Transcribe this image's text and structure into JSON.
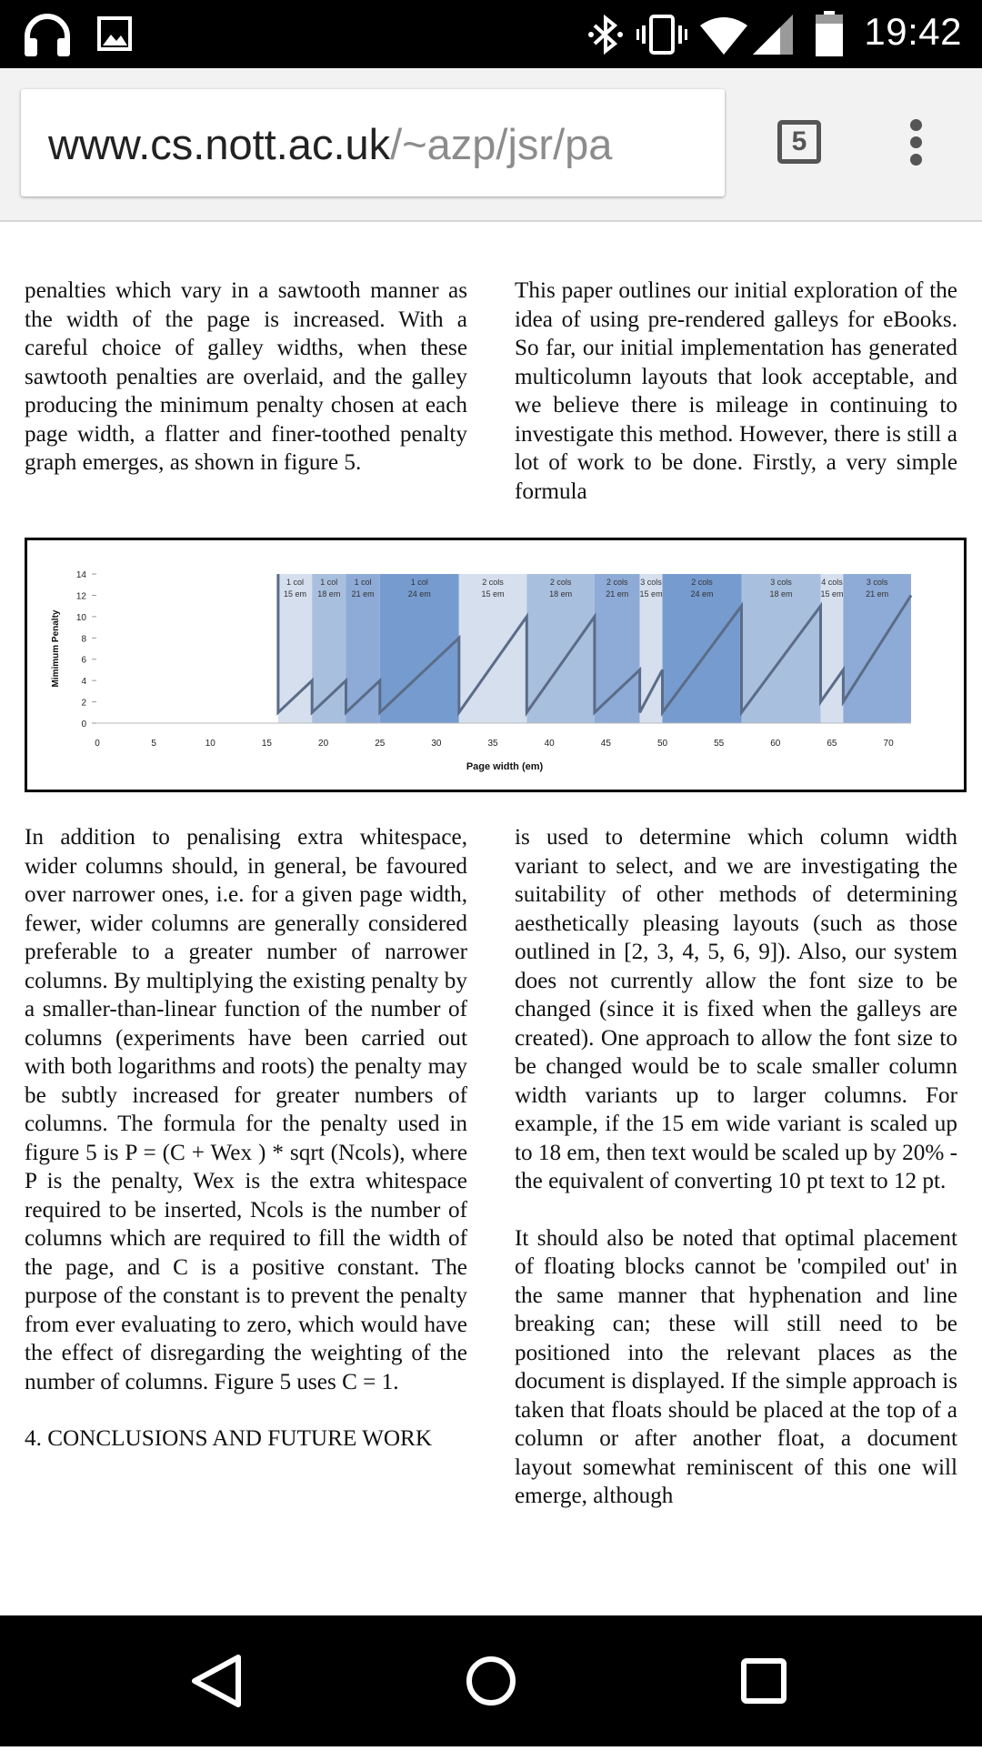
{
  "status_bar": {
    "time": "19:42",
    "left_icons": [
      "headphones-icon",
      "image-icon"
    ],
    "right_icons": [
      "bluetooth-icon",
      "vibrate-icon",
      "wifi-icon",
      "signal-icon",
      "battery-icon"
    ]
  },
  "browser": {
    "url_host": "www.cs.nott.ac.uk",
    "url_path": "/~azp/jsr/pa",
    "tab_count": "5",
    "menu_icon": "overflow-menu-icon"
  },
  "document": {
    "left_col_top": "penalties which vary in a sawtooth manner as the width of the page is increased. With a careful choice of galley widths, when these sawtooth penalties are overlaid, and the galley producing the minimum penalty chosen at each page width, a flatter and finer-toothed penalty graph emerges, as shown in figure 5.",
    "right_col_top": "This paper outlines our initial exploration of the idea of using pre-rendered galleys for eBooks. So far, our initial implementation has generated multicolumn layouts that look acceptable, and we believe there is mileage in continuing to investigate this method. However, there is still a lot of work to be done. Firstly, a very simple formula",
    "left_col_bottom": "In addition to penalising extra whitespace, wider columns should, in general, be favoured over narrower ones, i.e. for a given page width, fewer, wider columns are generally considered preferable to a greater number of narrower columns. By multiplying the existing penalty by a smaller-than-linear function of the number of columns (experiments have been carried out with both logarithms and roots) the penalty may be subtly increased for greater numbers of columns. The formula for the penalty used in figure 5 is P = (C + Wex ) * sqrt (Ncols), where P is the penalty, Wex is the extra whitespace required to be inserted, Ncols is the number of columns which are required to fill the width of the page, and C is a positive constant. The purpose of the constant is to prevent the penalty from ever evaluating to zero, which would have the effect of disregarding the weighting of the number of columns. Figure 5 uses C = 1.",
    "section_heading": "4. CONCLUSIONS AND FUTURE WORK",
    "right_col_bottom_p1": "is used to determine which column width variant to select, and we are investigating the suitability of other methods of determining aesthetically pleasing layouts (such as those outlined in [2, 3, 4, 5, 6, 9]). Also, our system does not currently allow the font size to be changed (since it is fixed when the galleys are created). One approach to allow the font size to be changed would be to scale smaller column width variants up to larger columns. For example, if the 15 em wide variant is scaled up to 18 em, then text would be scaled up by 20% - the equivalent of converting 10 pt text to 12 pt.",
    "right_col_bottom_p2": "It should also be noted that optimal placement of floating blocks cannot be 'compiled out' in the same manner that hyphenation and line breaking can; these will still need to be positioned into the relevant places as the document is displayed. If the simple approach is taken that floats should be placed at the top of a column or after another float, a document layout somewhat reminiscent of this one will emerge, although"
  },
  "chart_data": {
    "type": "line",
    "title": "",
    "xlabel": "Page width (em)",
    "ylabel": "Mimimum Penalty",
    "xlim": [
      0,
      72
    ],
    "ylim": [
      0,
      14
    ],
    "x_ticks": [
      0,
      5,
      10,
      15,
      20,
      25,
      30,
      35,
      40,
      45,
      50,
      55,
      60,
      65,
      70
    ],
    "y_ticks": [
      0,
      2,
      4,
      6,
      8,
      10,
      12,
      14
    ],
    "grid": false,
    "bands": [
      {
        "start": 16,
        "end": 19,
        "label1": "1 col",
        "label2": "15 em",
        "color": "#d5dfee"
      },
      {
        "start": 19,
        "end": 22,
        "label1": "1 col",
        "label2": "18 em",
        "color": "#a9bfde"
      },
      {
        "start": 22,
        "end": 25,
        "label1": "1 col",
        "label2": "21 em",
        "color": "#8eaad6"
      },
      {
        "start": 25,
        "end": 32,
        "label1": "1 col",
        "label2": "24 em",
        "color": "#769bcf"
      },
      {
        "start": 32,
        "end": 38,
        "label1": "2 cols",
        "label2": "15 em",
        "color": "#d5dfee"
      },
      {
        "start": 38,
        "end": 44,
        "label1": "2 cols",
        "label2": "18 em",
        "color": "#a9bfde"
      },
      {
        "start": 44,
        "end": 48,
        "label1": "2 cols",
        "label2": "21 em",
        "color": "#8eaad6"
      },
      {
        "start": 48,
        "end": 50,
        "label1": "3 cols",
        "label2": "15 em",
        "color": "#d5dfee"
      },
      {
        "start": 50,
        "end": 57,
        "label1": "2 cols",
        "label2": "24 em",
        "color": "#769bcf"
      },
      {
        "start": 57,
        "end": 64,
        "label1": "3 cols",
        "label2": "18 em",
        "color": "#a9bfde"
      },
      {
        "start": 64,
        "end": 66,
        "label1": "4 cols",
        "label2": "15 em",
        "color": "#d5dfee"
      },
      {
        "start": 66,
        "end": 72,
        "label1": "3 cols",
        "label2": "21 em",
        "color": "#8eaad6"
      }
    ],
    "series": [
      {
        "line_color": "#5a6c87",
        "x": [
          16,
          16,
          19,
          19,
          22,
          22,
          25,
          25,
          32,
          32,
          38,
          38,
          44,
          44,
          48,
          48,
          50,
          50,
          57,
          57,
          64,
          64,
          66,
          66,
          72
        ],
        "y": [
          14,
          1,
          4,
          1,
          4,
          1,
          4,
          1,
          8,
          1,
          10,
          1,
          10,
          1,
          5,
          1,
          5,
          1,
          11,
          1,
          11,
          2,
          5,
          2,
          12
        ]
      }
    ]
  }
}
